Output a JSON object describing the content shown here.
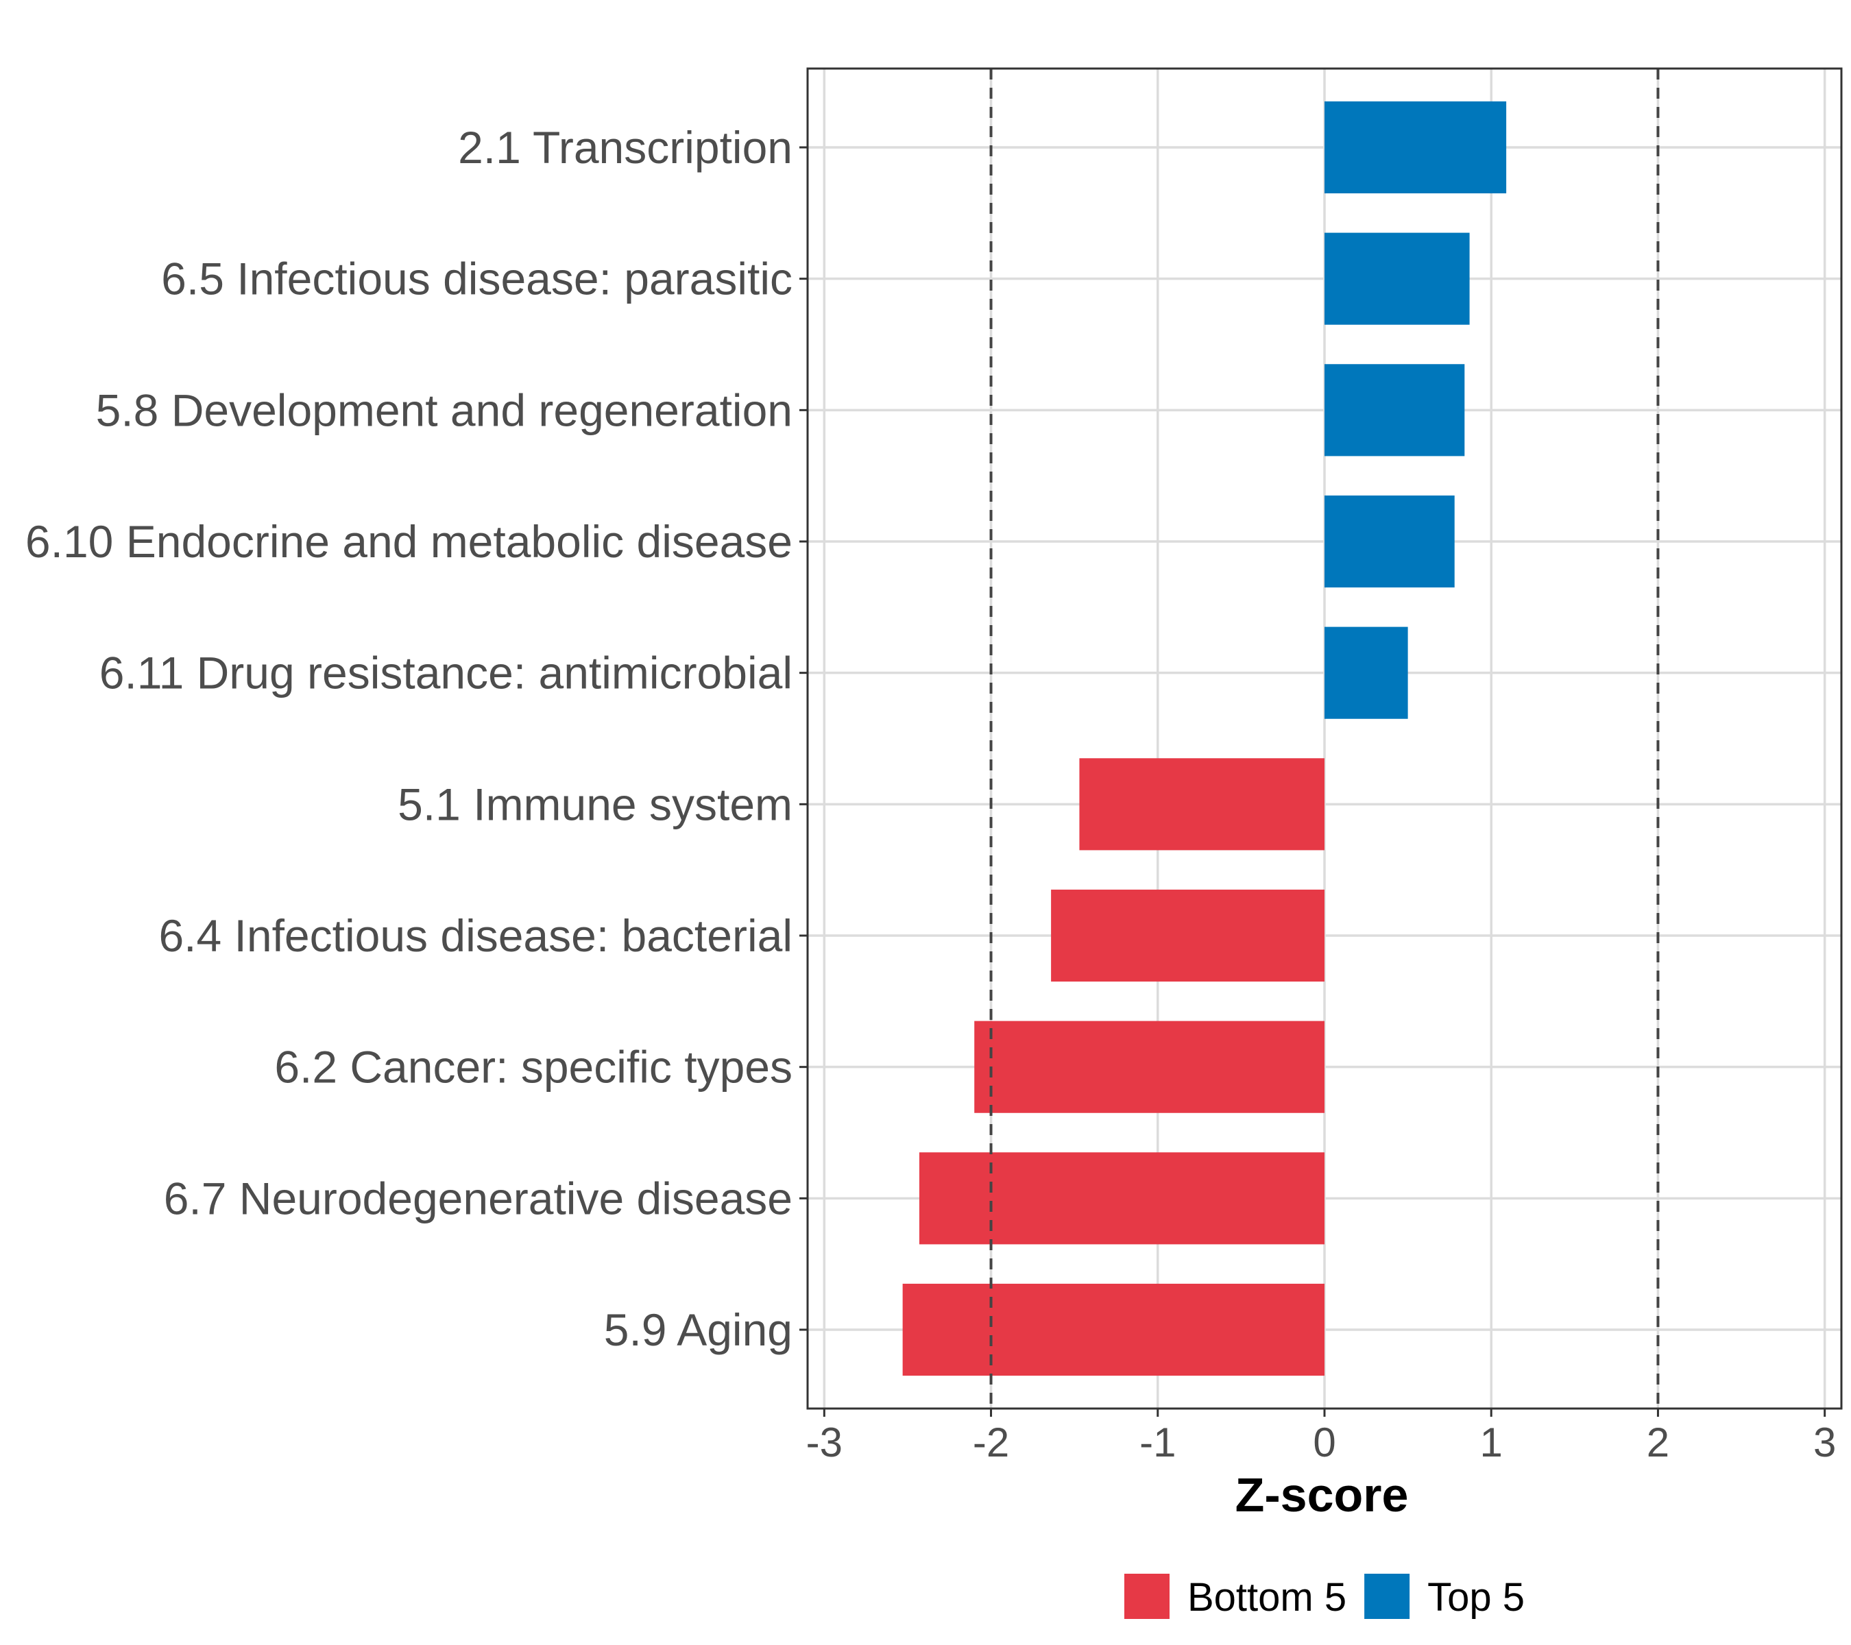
{
  "chart_data": {
    "type": "bar",
    "orientation": "horizontal",
    "title": "",
    "xlabel": "Z-score",
    "ylabel": "",
    "xlim": [
      -3.1,
      3.1
    ],
    "xticks": [
      -3,
      -2,
      -1,
      0,
      1,
      2,
      3
    ],
    "tick_labels": [
      "-3",
      "-2",
      "-1",
      "0",
      "1",
      "2",
      "3"
    ],
    "reference_lines": [
      -2,
      2
    ],
    "grid": true,
    "categories": [
      "2.1 Transcription",
      "6.5 Infectious disease: parasitic",
      "5.8 Development and regeneration",
      "6.10 Endocrine and metabolic disease",
      "6.11 Drug resistance: antimicrobial",
      "5.1 Immune system",
      "6.4 Infectious disease: bacterial",
      "6.2 Cancer: specific types",
      "6.7 Neurodegenerative disease",
      "5.9 Aging"
    ],
    "values": [
      1.09,
      0.87,
      0.84,
      0.78,
      0.5,
      -1.47,
      -1.64,
      -2.1,
      -2.43,
      -2.53
    ],
    "groups": [
      "Top 5",
      "Top 5",
      "Top 5",
      "Top 5",
      "Top 5",
      "Bottom 5",
      "Bottom 5",
      "Bottom 5",
      "Bottom 5",
      "Bottom 5"
    ],
    "legend": {
      "position": "bottom",
      "items": [
        {
          "label": "Bottom 5",
          "color": "#e63946"
        },
        {
          "label": "Top 5",
          "color": "#0077bb"
        }
      ]
    }
  }
}
